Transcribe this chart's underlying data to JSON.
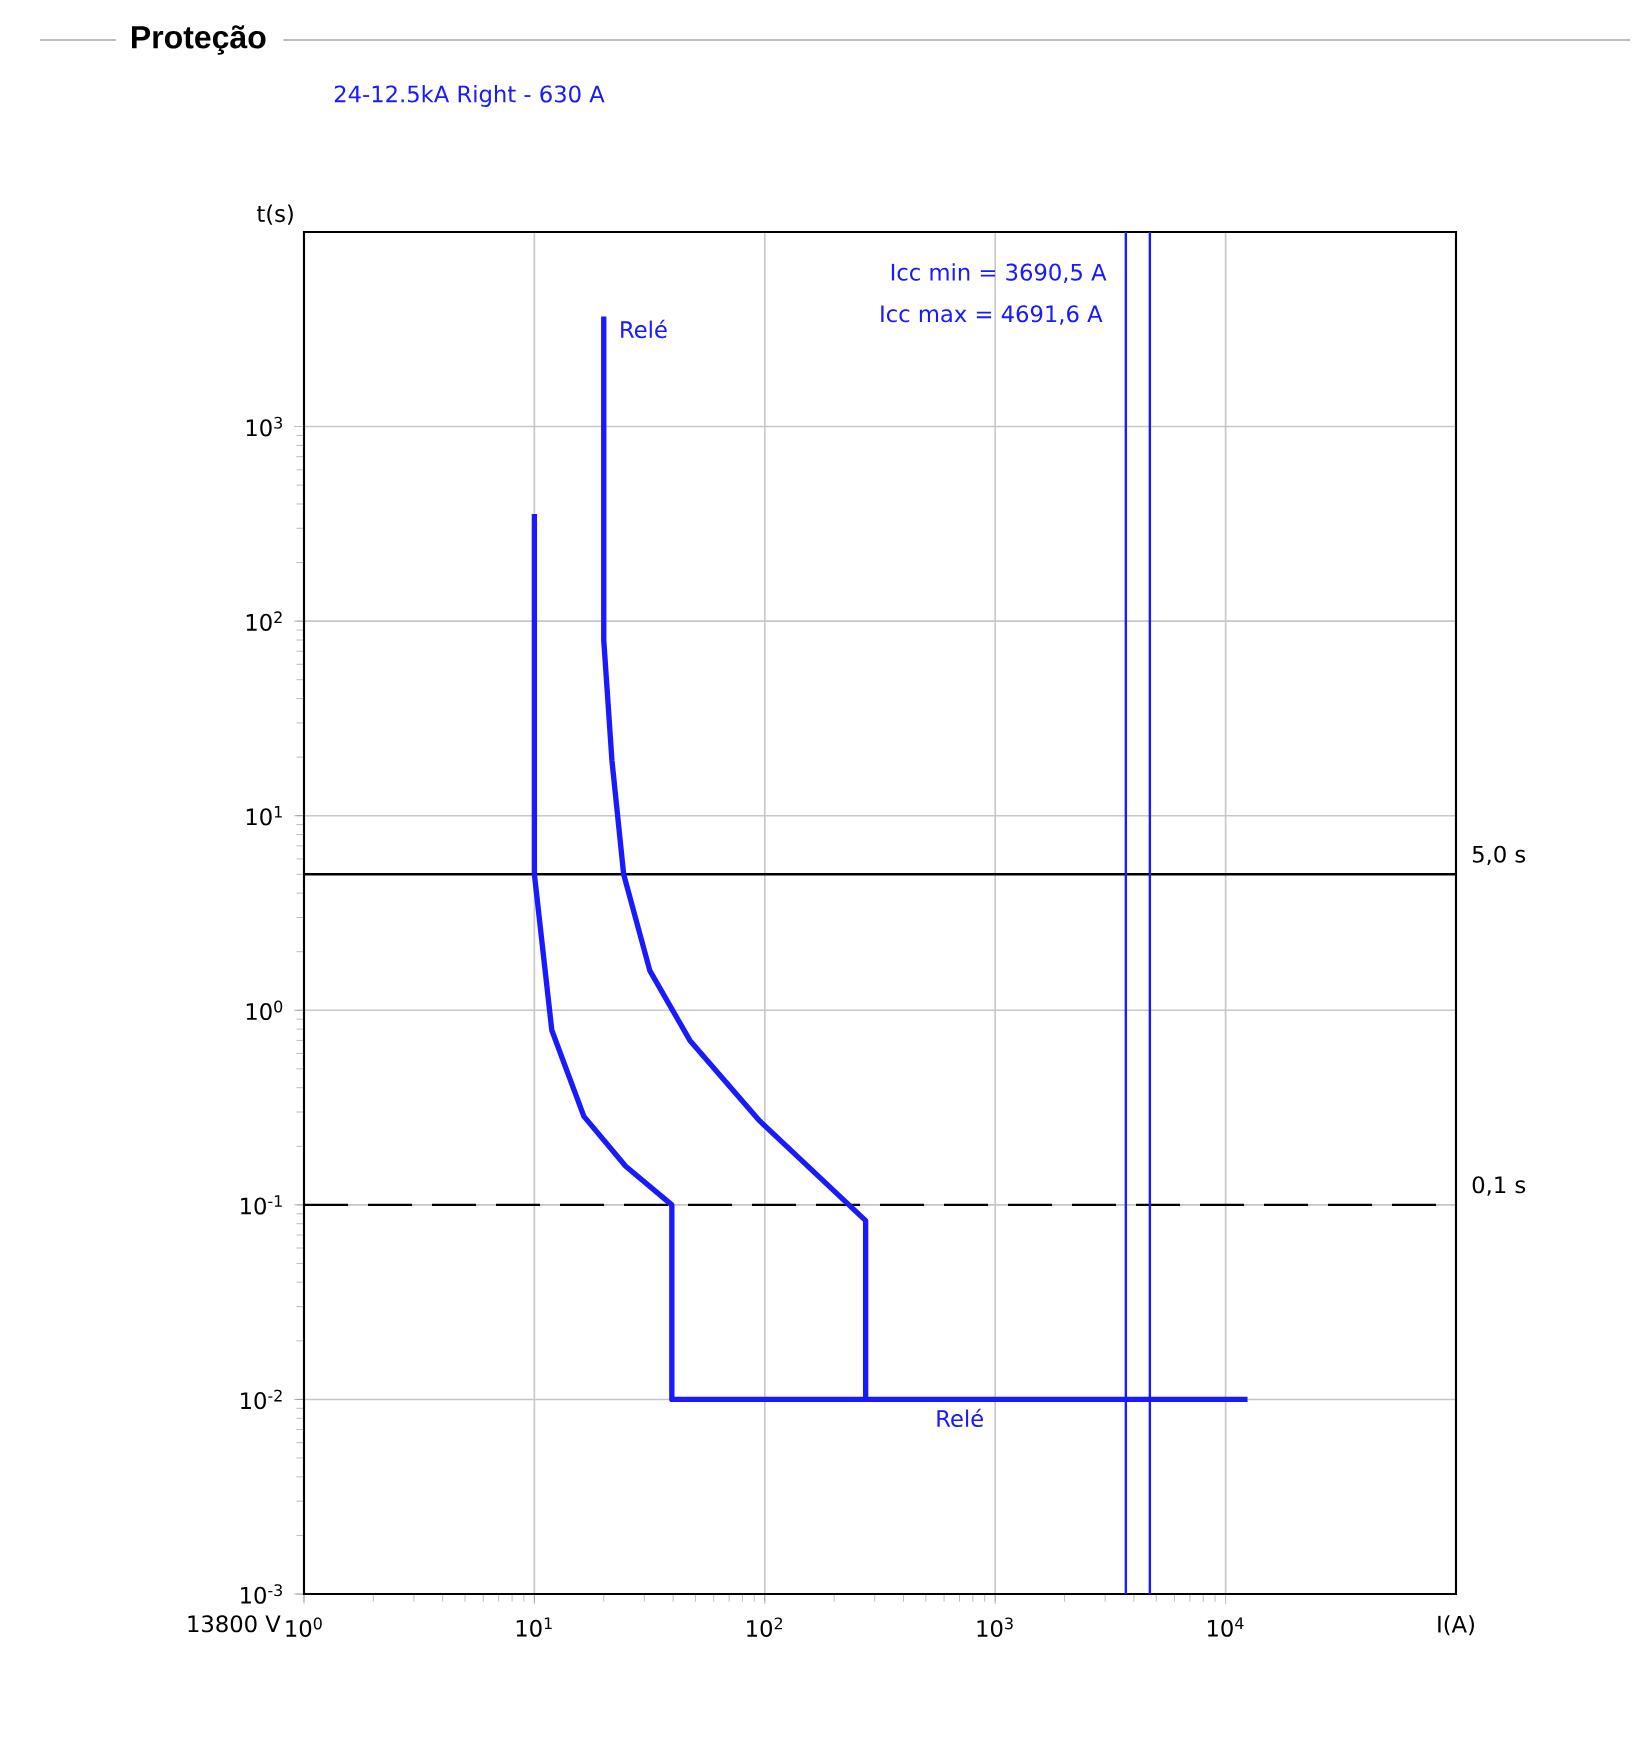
{
  "chart_data": {
    "type": "line",
    "title": "Proteção",
    "subtitle": "24-12.5kA Right - 630 A",
    "xlabel": "I(A)",
    "ylabel": "t(s)",
    "annotations": [
      "13800 V"
    ],
    "log": "xy",
    "grid": true,
    "marker": "none",
    "line_style": "solid",
    "xlim": [
      1,
      100000
    ],
    "ylim": [
      0.001,
      10000
    ],
    "xticks": [
      {
        "value": 1,
        "label": "10$^{0}$"
      },
      {
        "value": 10,
        "label": "10$^{1}$"
      },
      {
        "value": 100,
        "label": "10$^{2}$"
      },
      {
        "value": 1000,
        "label": "10$^{3}$"
      },
      {
        "value": 10000,
        "label": "10$^{4}$"
      }
    ],
    "yticks": [
      {
        "value": 0.001,
        "label": "10$^{-3}$"
      },
      {
        "value": 0.01,
        "label": "10$^{-2}$"
      },
      {
        "value": 0.1,
        "label": "10$^{-1}$"
      },
      {
        "value": 1,
        "label": "10$^{0}$"
      },
      {
        "value": 10,
        "label": "10$^{1}$"
      },
      {
        "value": 100,
        "label": "10$^{2}$"
      },
      {
        "value": 1000,
        "label": "10$^{3}$"
      }
    ],
    "series": [
      {
        "name": "Relé",
        "color": "#1a1aff",
        "x": [
          10,
          10,
          11.9,
          16.4,
          24.9,
          39.5,
          39.5,
          12450
        ],
        "values": [
          355,
          5,
          0.79,
          0.285,
          0.158,
          0.1,
          0.01,
          0.01
        ]
      },
      {
        "name": "Relé",
        "color": "#1a1aff",
        "x": [
          20,
          20,
          21.7,
          24.4,
          31.7,
          47.3,
          95,
          274,
          274
        ],
        "values": [
          3680,
          80,
          19.3,
          5,
          1.6,
          0.7,
          0.27,
          0.083,
          0.01
        ]
      }
    ],
    "ref_lines": [
      {
        "axis": "y",
        "value": 5,
        "label": "5,0 s",
        "color": "#000000",
        "line_style": "solid"
      },
      {
        "axis": "y",
        "value": 0.1,
        "label": "0,1 s",
        "color": "#000000",
        "line_style": "dashed"
      },
      {
        "axis": "x",
        "value": 3690.5,
        "label": "Icc min = 3690,5 A",
        "color": "#1a1aff",
        "line_style": "solid"
      },
      {
        "axis": "x",
        "value": 4691.6,
        "label": "Icc max = 4691,6 A",
        "color": "#1a1aff",
        "line_style": "solid"
      }
    ]
  }
}
